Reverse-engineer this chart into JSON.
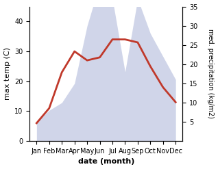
{
  "months": [
    "Jan",
    "Feb",
    "Mar",
    "Apr",
    "May",
    "Jun",
    "Jul",
    "Aug",
    "Sep",
    "Oct",
    "Nov",
    "Dec"
  ],
  "temp_C": [
    6,
    11,
    23,
    30,
    27,
    28,
    34,
    34,
    33,
    25,
    18,
    13
  ],
  "precip_kg": [
    5,
    8,
    10,
    15,
    30,
    41,
    37,
    18,
    37,
    28,
    22,
    16
  ],
  "temp_color": "#c0392b",
  "precip_color": "#aab4d8",
  "precip_fill_alpha": 0.55,
  "xlabel": "date (month)",
  "ylabel_left": "max temp (C)",
  "ylabel_right": "med. precipitation (kg/m2)",
  "ylim_left": [
    0,
    45
  ],
  "ylim_right": [
    0,
    35
  ],
  "yticks_left": [
    0,
    10,
    20,
    30,
    40
  ],
  "yticks_right": [
    5,
    10,
    15,
    20,
    25,
    30,
    35
  ],
  "figsize": [
    3.18,
    2.47
  ],
  "dpi": 100,
  "temp_linewidth": 2.0,
  "xlabel_fontweight": "bold"
}
